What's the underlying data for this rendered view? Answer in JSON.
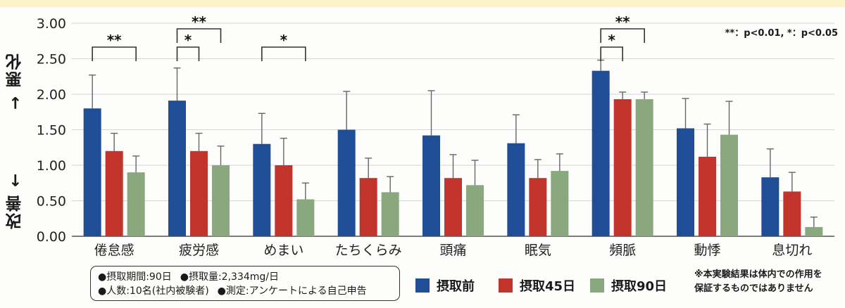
{
  "chart_data": {
    "type": "bar",
    "ylim": [
      0,
      3
    ],
    "yticks": [
      "0.00",
      "0.50",
      "1.00",
      "1.50",
      "2.00",
      "2.50",
      "3.00"
    ],
    "ylabel_up": "→ 悪化",
    "ylabel_down": "改善 ←",
    "categories": [
      "倦怠感",
      "疲労感",
      "めまい",
      "たちくらみ",
      "頭痛",
      "眠気",
      "頻脈",
      "動悸",
      "息切れ"
    ],
    "series": [
      {
        "name": "摂取前",
        "color": "#1f4e96",
        "values": [
          1.8,
          1.91,
          1.3,
          1.5,
          1.42,
          1.31,
          2.33,
          1.52,
          0.83
        ],
        "errors": [
          0.47,
          0.46,
          0.43,
          0.54,
          0.63,
          0.4,
          0.15,
          0.42,
          0.4
        ]
      },
      {
        "name": "摂取45日",
        "color": "#c1332b",
        "values": [
          1.2,
          1.2,
          1.0,
          0.82,
          0.82,
          0.82,
          1.93,
          1.12,
          0.63
        ],
        "errors": [
          0.25,
          0.25,
          0.38,
          0.28,
          0.33,
          0.26,
          0.1,
          0.46,
          0.27
        ]
      },
      {
        "name": "摂取90日",
        "color": "#8aa87d",
        "values": [
          0.9,
          1.0,
          0.52,
          0.62,
          0.72,
          0.92,
          1.93,
          1.43,
          0.13
        ],
        "errors": [
          0.23,
          0.27,
          0.23,
          0.22,
          0.35,
          0.24,
          0.1,
          0.47,
          0.14
        ]
      }
    ],
    "significance": [
      {
        "category": 0,
        "from": 0,
        "to": 2,
        "label": "**",
        "level": 1
      },
      {
        "category": 1,
        "from": 0,
        "to": 1,
        "label": "*",
        "level": 1
      },
      {
        "category": 1,
        "from": 0,
        "to": 2,
        "label": "**",
        "level": 2
      },
      {
        "category": 2,
        "from": 0,
        "to": 2,
        "label": "*",
        "level": 1
      },
      {
        "category": 6,
        "from": 0,
        "to": 1,
        "label": "*",
        "level": 1
      },
      {
        "category": 6,
        "from": 0,
        "to": 2,
        "label": "**",
        "level": 2
      }
    ],
    "grid": true,
    "legend_position": "bottom"
  },
  "sig_note": "**：p<0.01, *：p<0.05",
  "info": {
    "line1_a": "●摂取期間:90日",
    "line1_b": "●摂取量:2,334mg/日",
    "line2_a": "●人数:10名(社内被験者)",
    "line2_b": "●測定:アンケートによる自己申告"
  },
  "disclaimer": {
    "line1": "※本実験結果は体内での作用を",
    "line2": "保証するものではありません"
  }
}
